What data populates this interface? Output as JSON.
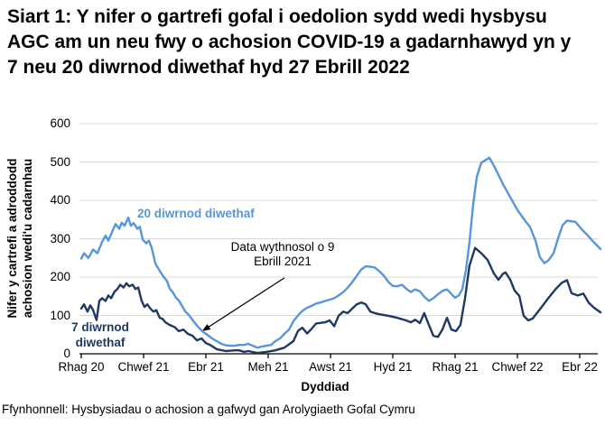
{
  "title": "Siart 1: Y nifer o gartrefi gofal i oedolion sydd wedi hysbysu AGC am un neu fwy o achosion COVID-19 a gadarnhawyd yn y 7 neu 20 diwrnod diwethaf hyd 27 Ebrill 2022",
  "source_note": "Ffynhonnell: Hysbysiadau o achosion a gafwyd gan Arolygiaeth Gofal Cymru",
  "chart_data": {
    "type": "line",
    "xlabel": "Dyddiad",
    "ylabel": "Nifer y cartrefi a adroddodd\nachosion wedi'u cadarnhau",
    "ylim": [
      0,
      600
    ],
    "yticks": [
      0,
      100,
      200,
      300,
      400,
      500,
      600
    ],
    "grid": true,
    "grid_color": "#D9D9D9",
    "axis_color": "#000000",
    "x_unit_note": "t = months after start of December 2020; daily data until April 2021, weekly from 9 April 2021; series end 27 April 2022",
    "xticks": [
      {
        "t": 0,
        "label": "Rhag 20"
      },
      {
        "t": 2,
        "label": "Chwef 21"
      },
      {
        "t": 4,
        "label": "Ebr 21"
      },
      {
        "t": 6,
        "label": "Meh 21"
      },
      {
        "t": 8,
        "label": "Awst 21"
      },
      {
        "t": 10,
        "label": "Hyd 21"
      },
      {
        "t": 12,
        "label": "Rhag 21"
      },
      {
        "t": 14,
        "label": "Chwef 22"
      },
      {
        "t": 16,
        "label": "Ebr 22"
      }
    ],
    "legend_position": "inline-labels",
    "annotation": {
      "text": "Data wythnosol o 9\nEbrill 2021",
      "arrow_from": [
        6.52,
        198
      ],
      "arrow_to": [
        3.88,
        59
      ]
    },
    "series": [
      {
        "name": "20 diwrnod diwethaf",
        "color": "#5795DC",
        "points": [
          [
            0.0,
            248
          ],
          [
            0.09,
            262
          ],
          [
            0.23,
            250
          ],
          [
            0.38,
            272
          ],
          [
            0.52,
            262
          ],
          [
            0.67,
            292
          ],
          [
            0.78,
            308
          ],
          [
            0.87,
            295
          ],
          [
            1.01,
            322
          ],
          [
            1.1,
            338
          ],
          [
            1.22,
            326
          ],
          [
            1.3,
            342
          ],
          [
            1.39,
            334
          ],
          [
            1.51,
            355
          ],
          [
            1.59,
            334
          ],
          [
            1.68,
            341
          ],
          [
            1.8,
            326
          ],
          [
            1.88,
            331
          ],
          [
            1.97,
            298
          ],
          [
            2.09,
            288
          ],
          [
            2.17,
            295
          ],
          [
            2.26,
            276
          ],
          [
            2.38,
            235
          ],
          [
            2.46,
            224
          ],
          [
            2.55,
            212
          ],
          [
            2.67,
            198
          ],
          [
            2.75,
            190
          ],
          [
            2.84,
            170
          ],
          [
            2.96,
            158
          ],
          [
            3.04,
            146
          ],
          [
            3.13,
            139
          ],
          [
            3.25,
            123
          ],
          [
            3.33,
            111
          ],
          [
            3.42,
            104
          ],
          [
            3.54,
            92
          ],
          [
            3.62,
            83
          ],
          [
            3.74,
            71
          ],
          [
            3.83,
            64
          ],
          [
            3.91,
            57
          ],
          [
            4.0,
            52
          ],
          [
            4.12,
            45
          ],
          [
            4.2,
            40
          ],
          [
            4.35,
            33
          ],
          [
            4.49,
            26
          ],
          [
            4.64,
            22
          ],
          [
            4.78,
            21
          ],
          [
            4.93,
            21
          ],
          [
            5.07,
            23
          ],
          [
            5.22,
            23
          ],
          [
            5.36,
            26
          ],
          [
            5.51,
            21
          ],
          [
            5.65,
            16
          ],
          [
            5.8,
            19
          ],
          [
            5.94,
            21
          ],
          [
            6.09,
            23
          ],
          [
            6.23,
            33
          ],
          [
            6.38,
            40
          ],
          [
            6.52,
            52
          ],
          [
            6.67,
            63
          ],
          [
            6.81,
            85
          ],
          [
            6.96,
            100
          ],
          [
            7.1,
            112
          ],
          [
            7.25,
            120
          ],
          [
            7.39,
            125
          ],
          [
            7.54,
            131
          ],
          [
            7.68,
            134
          ],
          [
            7.83,
            138
          ],
          [
            7.97,
            141
          ],
          [
            8.12,
            145
          ],
          [
            8.26,
            152
          ],
          [
            8.41,
            161
          ],
          [
            8.55,
            172
          ],
          [
            8.7,
            187
          ],
          [
            8.84,
            203
          ],
          [
            8.99,
            220
          ],
          [
            9.13,
            228
          ],
          [
            9.28,
            227
          ],
          [
            9.42,
            225
          ],
          [
            9.57,
            215
          ],
          [
            9.71,
            204
          ],
          [
            9.86,
            187
          ],
          [
            10.0,
            177
          ],
          [
            10.14,
            176
          ],
          [
            10.29,
            180
          ],
          [
            10.43,
            170
          ],
          [
            10.58,
            161
          ],
          [
            10.72,
            168
          ],
          [
            10.87,
            163
          ],
          [
            11.01,
            149
          ],
          [
            11.16,
            138
          ],
          [
            11.3,
            145
          ],
          [
            11.45,
            155
          ],
          [
            11.59,
            164
          ],
          [
            11.74,
            168
          ],
          [
            11.88,
            156
          ],
          [
            12.0,
            146
          ],
          [
            12.12,
            152
          ],
          [
            12.23,
            168
          ],
          [
            12.35,
            220
          ],
          [
            12.46,
            290
          ],
          [
            12.58,
            390
          ],
          [
            12.7,
            462
          ],
          [
            12.84,
            498
          ],
          [
            13.1,
            511
          ],
          [
            13.28,
            485
          ],
          [
            13.54,
            442
          ],
          [
            13.77,
            408
          ],
          [
            14.0,
            375
          ],
          [
            14.2,
            352
          ],
          [
            14.41,
            330
          ],
          [
            14.58,
            295
          ],
          [
            14.72,
            252
          ],
          [
            14.87,
            236
          ],
          [
            15.01,
            245
          ],
          [
            15.16,
            262
          ],
          [
            15.3,
            300
          ],
          [
            15.45,
            335
          ],
          [
            15.59,
            347
          ],
          [
            15.86,
            344
          ],
          [
            16.06,
            325
          ],
          [
            16.23,
            311
          ],
          [
            16.43,
            293
          ],
          [
            16.67,
            273
          ]
        ]
      },
      {
        "name": "7 diwrnod diwethaf",
        "color": "#1F3864",
        "points": [
          [
            0.0,
            118
          ],
          [
            0.09,
            129
          ],
          [
            0.2,
            110
          ],
          [
            0.29,
            126
          ],
          [
            0.38,
            114
          ],
          [
            0.49,
            88
          ],
          [
            0.58,
            138
          ],
          [
            0.67,
            145
          ],
          [
            0.78,
            138
          ],
          [
            0.87,
            152
          ],
          [
            0.96,
            145
          ],
          [
            1.07,
            162
          ],
          [
            1.16,
            169
          ],
          [
            1.25,
            180
          ],
          [
            1.36,
            173
          ],
          [
            1.45,
            184
          ],
          [
            1.54,
            176
          ],
          [
            1.65,
            180
          ],
          [
            1.74,
            169
          ],
          [
            1.83,
            173
          ],
          [
            1.94,
            138
          ],
          [
            2.03,
            122
          ],
          [
            2.12,
            129
          ],
          [
            2.23,
            117
          ],
          [
            2.32,
            110
          ],
          [
            2.41,
            114
          ],
          [
            2.52,
            94
          ],
          [
            2.61,
            91
          ],
          [
            2.7,
            82
          ],
          [
            2.84,
            75
          ],
          [
            2.99,
            70
          ],
          [
            3.13,
            59
          ],
          [
            3.28,
            63
          ],
          [
            3.42,
            52
          ],
          [
            3.57,
            47
          ],
          [
            3.71,
            35
          ],
          [
            3.86,
            40
          ],
          [
            4.0,
            28
          ],
          [
            4.14,
            23
          ],
          [
            4.35,
            12
          ],
          [
            4.64,
            7
          ],
          [
            4.93,
            9
          ],
          [
            5.07,
            9
          ],
          [
            5.22,
            5
          ],
          [
            5.36,
            7
          ],
          [
            5.65,
            2
          ],
          [
            5.94,
            5
          ],
          [
            6.23,
            9
          ],
          [
            6.52,
            16
          ],
          [
            6.81,
            33
          ],
          [
            6.96,
            60
          ],
          [
            7.1,
            68
          ],
          [
            7.25,
            53
          ],
          [
            7.39,
            65
          ],
          [
            7.54,
            79
          ],
          [
            7.83,
            82
          ],
          [
            7.97,
            87
          ],
          [
            8.12,
            72
          ],
          [
            8.26,
            99
          ],
          [
            8.41,
            110
          ],
          [
            8.55,
            106
          ],
          [
            8.7,
            118
          ],
          [
            8.84,
            129
          ],
          [
            8.99,
            134
          ],
          [
            9.13,
            129
          ],
          [
            9.28,
            110
          ],
          [
            9.42,
            106
          ],
          [
            9.57,
            103
          ],
          [
            9.86,
            99
          ],
          [
            10.14,
            94
          ],
          [
            10.43,
            87
          ],
          [
            10.58,
            82
          ],
          [
            10.72,
            89
          ],
          [
            10.87,
            80
          ],
          [
            11.01,
            106
          ],
          [
            11.16,
            75
          ],
          [
            11.3,
            47
          ],
          [
            11.45,
            44
          ],
          [
            11.59,
            63
          ],
          [
            11.74,
            94
          ],
          [
            11.88,
            63
          ],
          [
            12.03,
            59
          ],
          [
            12.17,
            75
          ],
          [
            12.32,
            145
          ],
          [
            12.46,
            230
          ],
          [
            12.64,
            276
          ],
          [
            12.84,
            262
          ],
          [
            13.04,
            245
          ],
          [
            13.25,
            209
          ],
          [
            13.39,
            193
          ],
          [
            13.54,
            209
          ],
          [
            13.62,
            212
          ],
          [
            13.77,
            193
          ],
          [
            13.91,
            165
          ],
          [
            14.06,
            151
          ],
          [
            14.2,
            99
          ],
          [
            14.35,
            87
          ],
          [
            14.49,
            92
          ],
          [
            14.78,
            122
          ],
          [
            14.99,
            145
          ],
          [
            15.22,
            168
          ],
          [
            15.42,
            185
          ],
          [
            15.59,
            192
          ],
          [
            15.74,
            158
          ],
          [
            15.94,
            152
          ],
          [
            16.12,
            157
          ],
          [
            16.29,
            133
          ],
          [
            16.46,
            120
          ],
          [
            16.67,
            108
          ]
        ]
      }
    ]
  }
}
